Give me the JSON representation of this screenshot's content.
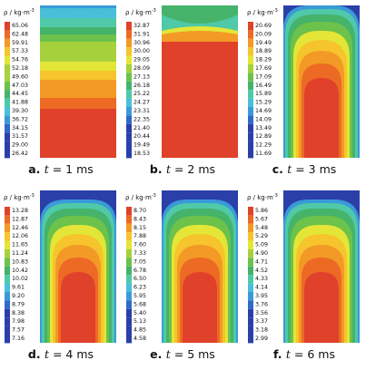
{
  "legend_unit": {
    "symbol": "ρ",
    "separator": " / ",
    "unit": "kg·m",
    "exponent": "-3"
  },
  "palette": [
    "#2a3fa8",
    "#2f6bc6",
    "#3a9ad9",
    "#49bfd9",
    "#4fc9a8",
    "#45b36a",
    "#6cc24a",
    "#a6d13c",
    "#e4e637",
    "#f6c42c",
    "#f39a26",
    "#ec6a24",
    "#e0412a"
  ],
  "panels": [
    {
      "letter": "a.",
      "time_var": "t",
      "time_value": "= 1 ms",
      "ticks": [
        "65.06",
        "62.48",
        "59.91",
        "57.33",
        "54.76",
        "52.18",
        "49.60",
        "47.03",
        "44.45",
        "41.88",
        "39.30",
        "36.72",
        "34.15",
        "31.57",
        "29.00",
        "26.42"
      ]
    },
    {
      "letter": "b.",
      "time_var": "t",
      "time_value": "= 2 ms",
      "ticks": [
        "32.87",
        "31.91",
        "30.96",
        "30.00",
        "29.05",
        "28.09",
        "27.13",
        "26.18",
        "25.22",
        "24.27",
        "23.31",
        "22.35",
        "21.40",
        "20.44",
        "19.49",
        "18.53"
      ]
    },
    {
      "letter": "c.",
      "time_var": "t",
      "time_value": "= 3 ms",
      "ticks": [
        "20.69",
        "20.09",
        "19.49",
        "18.89",
        "18.29",
        "17.69",
        "17.09",
        "16.49",
        "15.89",
        "15.29",
        "14.69",
        "14.09",
        "13.49",
        "12.89",
        "12.29",
        "11.69"
      ]
    },
    {
      "letter": "d.",
      "time_var": "t",
      "time_value": "= 4 ms",
      "ticks": [
        "13.28",
        "12.87",
        "12.46",
        "12.06",
        "11.65",
        "11.24",
        "10.83",
        "10.42",
        "10.02",
        "9.61",
        "9.20",
        "8.79",
        "8.38",
        "7.98",
        "7.57",
        "7.16"
      ]
    },
    {
      "letter": "e.",
      "time_var": "t",
      "time_value": "= 5 ms",
      "ticks": [
        "8.70",
        "8.43",
        "8.15",
        "7.88",
        "7.60",
        "7.33",
        "7.05",
        "6.78",
        "6.50",
        "6.23",
        "5.95",
        "5.68",
        "5.40",
        "5.13",
        "4.85",
        "4.58"
      ]
    },
    {
      "letter": "f.",
      "time_var": "t",
      "time_value": "= 6 ms",
      "ticks": [
        "5.86",
        "5.67",
        "5.48",
        "5.29",
        "5.09",
        "4.90",
        "4.71",
        "4.52",
        "4.33",
        "4.14",
        "3.95",
        "3.76",
        "3.56",
        "3.37",
        "3.18",
        "2.99"
      ]
    }
  ]
}
